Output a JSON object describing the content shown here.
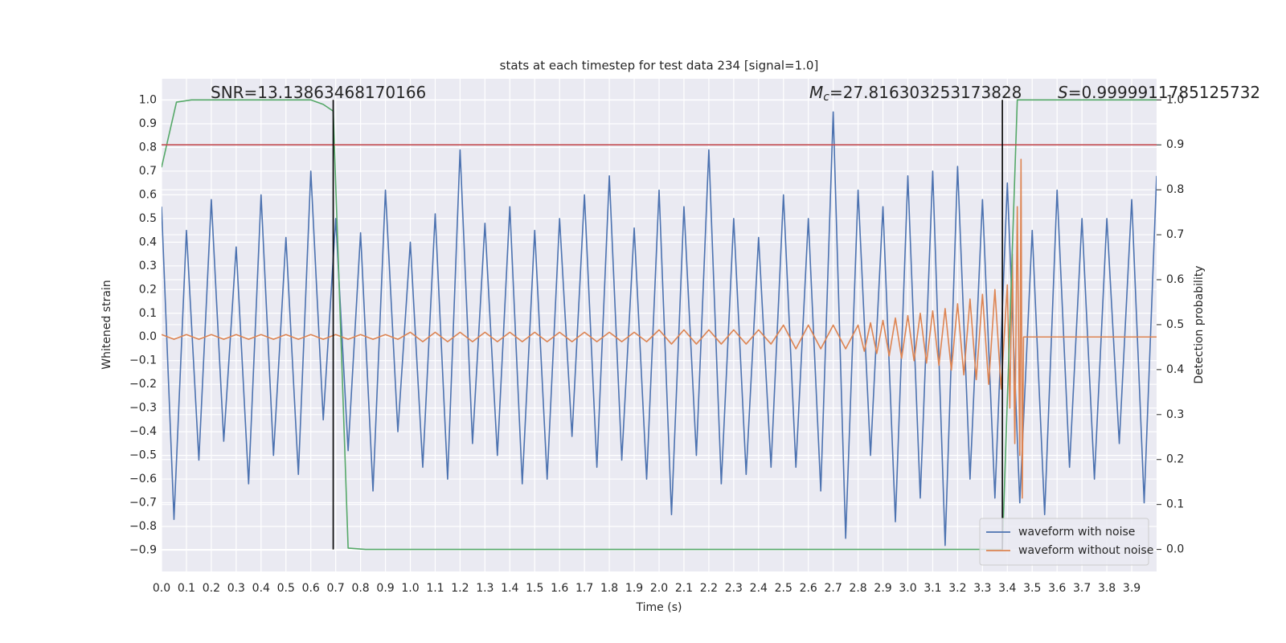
{
  "chart_data": {
    "type": "line",
    "title": "stats at each timestep for test data 234 [signal=1.0]",
    "x_label": "Time (s)",
    "y_label": "Whitened strain",
    "y2_label": "Detection probability",
    "xlim": [
      0,
      4
    ],
    "ylim": [
      -0.99,
      1.09
    ],
    "y2lim": [
      -0.049,
      1.047
    ],
    "grid": true,
    "legend": "lower right",
    "xticks": [
      {
        "value": 0,
        "label": "0.0"
      },
      {
        "value": 0.1,
        "label": "0.1"
      },
      {
        "value": 0.2,
        "label": "0.2"
      },
      {
        "value": 0.3,
        "label": "0.3"
      },
      {
        "value": 0.4,
        "label": "0.4"
      },
      {
        "value": 0.5,
        "label": "0.5"
      },
      {
        "value": 0.6,
        "label": "0.6"
      },
      {
        "value": 0.7,
        "label": "0.7"
      },
      {
        "value": 0.8,
        "label": "0.8"
      },
      {
        "value": 0.9,
        "label": "0.9"
      },
      {
        "value": 1,
        "label": "1.0"
      },
      {
        "value": 1.1,
        "label": "1.1"
      },
      {
        "value": 1.2,
        "label": "1.2"
      },
      {
        "value": 1.3,
        "label": "1.3"
      },
      {
        "value": 1.4,
        "label": "1.4"
      },
      {
        "value": 1.5,
        "label": "1.5"
      },
      {
        "value": 1.6,
        "label": "1.6"
      },
      {
        "value": 1.7,
        "label": "1.7"
      },
      {
        "value": 1.8,
        "label": "1.8"
      },
      {
        "value": 1.9,
        "label": "1.9"
      },
      {
        "value": 2,
        "label": "2.0"
      },
      {
        "value": 2.1,
        "label": "2.1"
      },
      {
        "value": 2.2,
        "label": "2.2"
      },
      {
        "value": 2.3,
        "label": "2.3"
      },
      {
        "value": 2.4,
        "label": "2.4"
      },
      {
        "value": 2.5,
        "label": "2.5"
      },
      {
        "value": 2.6,
        "label": "2.6"
      },
      {
        "value": 2.7,
        "label": "2.7"
      },
      {
        "value": 2.8,
        "label": "2.8"
      },
      {
        "value": 2.9,
        "label": "2.9"
      },
      {
        "value": 3,
        "label": "3.0"
      },
      {
        "value": 3.1,
        "label": "3.1"
      },
      {
        "value": 3.2,
        "label": "3.2"
      },
      {
        "value": 3.3,
        "label": "3.3"
      },
      {
        "value": 3.4,
        "label": "3.4"
      },
      {
        "value": 3.5,
        "label": "3.5"
      },
      {
        "value": 3.6,
        "label": "3.6"
      },
      {
        "value": 3.7,
        "label": "3.7"
      },
      {
        "value": 3.8,
        "label": "3.8"
      },
      {
        "value": 3.9,
        "label": "3.9"
      }
    ],
    "yticks": [
      {
        "value": -0.9,
        "label": "−0.9"
      },
      {
        "value": -0.8,
        "label": "−0.8"
      },
      {
        "value": -0.7,
        "label": "−0.7"
      },
      {
        "value": -0.6,
        "label": "−0.6"
      },
      {
        "value": -0.5,
        "label": "−0.5"
      },
      {
        "value": -0.4,
        "label": "−0.4"
      },
      {
        "value": -0.3,
        "label": "−0.3"
      },
      {
        "value": -0.2,
        "label": "−0.2"
      },
      {
        "value": -0.1,
        "label": "−0.1"
      },
      {
        "value": 0,
        "label": "0.0"
      },
      {
        "value": 0.1,
        "label": "0.1"
      },
      {
        "value": 0.2,
        "label": "0.2"
      },
      {
        "value": 0.3,
        "label": "0.3"
      },
      {
        "value": 0.4,
        "label": "0.4"
      },
      {
        "value": 0.5,
        "label": "0.5"
      },
      {
        "value": 0.6,
        "label": "0.6"
      },
      {
        "value": 0.7,
        "label": "0.7"
      },
      {
        "value": 0.8,
        "label": "0.8"
      },
      {
        "value": 0.9,
        "label": "0.9"
      },
      {
        "value": 1,
        "label": "1.0"
      }
    ],
    "y2ticks": [
      {
        "value": 0,
        "label": "0.0"
      },
      {
        "value": 0.1,
        "label": "0.1"
      },
      {
        "value": 0.2,
        "label": "0.2"
      },
      {
        "value": 0.3,
        "label": "0.3"
      },
      {
        "value": 0.4,
        "label": "0.4"
      },
      {
        "value": 0.5,
        "label": "0.5"
      },
      {
        "value": 0.6,
        "label": "0.6"
      },
      {
        "value": 0.7,
        "label": "0.7"
      },
      {
        "value": 0.8,
        "label": "0.8"
      },
      {
        "value": 0.9,
        "label": "0.9"
      },
      {
        "value": 1,
        "label": "1.0"
      }
    ],
    "series": [
      {
        "name": "waveform with noise",
        "color": "#4c72b0",
        "x": [
          0,
          0.05,
          0.1,
          0.15,
          0.2,
          0.25,
          0.3,
          0.35,
          0.4,
          0.45,
          0.5,
          0.55,
          0.6,
          0.65,
          0.7,
          0.75,
          0.8,
          0.85,
          0.9,
          0.95,
          1,
          1.05,
          1.1,
          1.15,
          1.2,
          1.25,
          1.3,
          1.35,
          1.4,
          1.45,
          1.5,
          1.55,
          1.6,
          1.65,
          1.7,
          1.75,
          1.8,
          1.85,
          1.9,
          1.95,
          2,
          2.05,
          2.1,
          2.15,
          2.2,
          2.25,
          2.3,
          2.35,
          2.4,
          2.45,
          2.5,
          2.55,
          2.6,
          2.65,
          2.7,
          2.75,
          2.8,
          2.85,
          2.9,
          2.95,
          3,
          3.05,
          3.1,
          3.15,
          3.2,
          3.25,
          3.3,
          3.35,
          3.4,
          3.45,
          3.5,
          3.55,
          3.6,
          3.65,
          3.7,
          3.75,
          3.8,
          3.85,
          3.9,
          3.95,
          4
        ],
        "values": [
          0.55,
          -0.77,
          0.45,
          -0.52,
          0.58,
          -0.44,
          0.38,
          -0.62,
          0.6,
          -0.5,
          0.42,
          -0.58,
          0.7,
          -0.35,
          0.5,
          -0.48,
          0.44,
          -0.65,
          0.62,
          -0.4,
          0.4,
          -0.55,
          0.52,
          -0.6,
          0.79,
          -0.45,
          0.48,
          -0.5,
          0.55,
          -0.62,
          0.45,
          -0.6,
          0.5,
          -0.42,
          0.6,
          -0.55,
          0.68,
          -0.52,
          0.46,
          -0.6,
          0.62,
          -0.75,
          0.55,
          -0.5,
          0.79,
          -0.62,
          0.5,
          -0.58,
          0.42,
          -0.55,
          0.6,
          -0.55,
          0.5,
          -0.65,
          0.95,
          -0.85,
          0.62,
          -0.5,
          0.55,
          -0.78,
          0.68,
          -0.68,
          0.7,
          -0.88,
          0.72,
          -0.6,
          0.58,
          -0.68,
          0.65,
          -0.7,
          0.45,
          -0.75,
          0.62,
          -0.55,
          0.5,
          -0.6,
          0.5,
          -0.45,
          0.58,
          -0.7,
          0.68
        ]
      },
      {
        "name": "waveform without noise",
        "color": "#dd8452",
        "x": [
          0,
          0.05,
          0.1,
          0.15,
          0.2,
          0.25,
          0.3,
          0.35,
          0.4,
          0.45,
          0.5,
          0.55,
          0.6,
          0.65,
          0.7,
          0.75,
          0.8,
          0.85,
          0.9,
          0.95,
          1,
          1.05,
          1.1,
          1.15,
          1.2,
          1.25,
          1.3,
          1.35,
          1.4,
          1.45,
          1.5,
          1.55,
          1.6,
          1.65,
          1.7,
          1.75,
          1.8,
          1.85,
          1.9,
          1.95,
          2,
          2.05,
          2.1,
          2.15,
          2.2,
          2.25,
          2.3,
          2.35,
          2.4,
          2.45,
          2.5,
          2.55,
          2.6,
          2.65,
          2.7,
          2.75,
          2.8,
          2.825,
          2.85,
          2.875,
          2.9,
          2.925,
          2.95,
          2.975,
          3,
          3.025,
          3.05,
          3.075,
          3.1,
          3.125,
          3.15,
          3.175,
          3.2,
          3.225,
          3.25,
          3.275,
          3.3,
          3.325,
          3.35,
          3.375,
          3.4,
          3.41,
          3.42,
          3.43,
          3.44,
          3.45,
          3.455,
          3.46,
          3.465,
          4
        ],
        "values": [
          0.01,
          -0.01,
          0.01,
          -0.01,
          0.01,
          -0.01,
          0.01,
          -0.01,
          0.01,
          -0.01,
          0.01,
          -0.01,
          0.01,
          -0.01,
          0.01,
          -0.01,
          0.01,
          -0.01,
          0.01,
          -0.01,
          0.02,
          -0.02,
          0.02,
          -0.02,
          0.02,
          -0.02,
          0.02,
          -0.02,
          0.02,
          -0.02,
          0.02,
          -0.02,
          0.02,
          -0.02,
          0.02,
          -0.02,
          0.02,
          -0.02,
          0.02,
          -0.02,
          0.03,
          -0.03,
          0.03,
          -0.03,
          0.03,
          -0.03,
          0.03,
          -0.03,
          0.03,
          -0.03,
          0.05,
          -0.05,
          0.05,
          -0.05,
          0.05,
          -0.05,
          0.05,
          -0.06,
          0.06,
          -0.07,
          0.07,
          -0.08,
          0.08,
          -0.09,
          0.09,
          -0.1,
          0.1,
          -0.11,
          0.11,
          -0.12,
          0.12,
          -0.14,
          0.14,
          -0.16,
          0.16,
          -0.18,
          0.18,
          -0.2,
          0.2,
          -0.22,
          0.22,
          -0.3,
          0.35,
          -0.45,
          0.55,
          -0.5,
          0.75,
          -0.68,
          0,
          0
        ]
      },
      {
        "color": "#55a868",
        "axis": "y2",
        "x": [
          0,
          0.06,
          0.12,
          0.6,
          0.65,
          0.69,
          0.75,
          0.82,
          3.38,
          3.44,
          4
        ],
        "values": [
          0.85,
          0.995,
          1.0,
          1.0,
          0.99,
          0.975,
          0.003,
          0.0,
          0.0,
          1.0,
          1.0
        ]
      },
      {
        "color": "#c44e52",
        "axis": "y2",
        "x": [
          0,
          4
        ],
        "values": [
          0.9,
          0.9
        ]
      }
    ],
    "vlines": [
      0.69,
      3.38
    ],
    "vline_span": [
      0,
      1
    ],
    "vline_color": "#000000",
    "annotations": [
      {
        "value": "SNR=13.13863468170166"
      },
      {
        "symbol": "M",
        "subscript": "c",
        "value": "=27.816303253173828"
      },
      {
        "symbol": "S",
        "value": "=0.9999911785125732"
      }
    ]
  }
}
